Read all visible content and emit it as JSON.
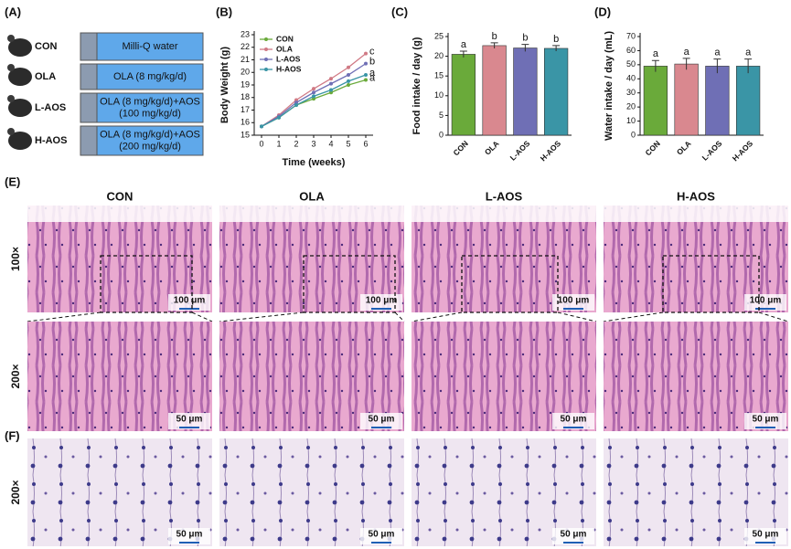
{
  "panel_a": {
    "label": "(A)",
    "groups": [
      {
        "name": "CON",
        "treatment": [
          "Milli-Q water"
        ]
      },
      {
        "name": "OLA",
        "treatment": [
          "OLA (8 mg/kg/d)"
        ]
      },
      {
        "name": "L-AOS",
        "treatment": [
          "OLA (8 mg/kg/d)+AOS",
          "(100 mg/kg/d)"
        ]
      },
      {
        "name": "H-AOS",
        "treatment": [
          "OLA (8 mg/kg/d)+AOS",
          "(200 mg/kg/d)"
        ]
      }
    ]
  },
  "chart_data": [
    {
      "panel": "(B)",
      "type": "line",
      "xlabel": "Time (weeks)",
      "ylabel": "Body Weight (g)",
      "x": [
        0,
        1,
        2,
        3,
        4,
        5,
        6
      ],
      "xlim": [
        0,
        6
      ],
      "xticks": [
        0,
        1,
        2,
        3,
        4,
        5,
        6
      ],
      "ylim": [
        15,
        23
      ],
      "yticks": [
        15,
        16,
        17,
        18,
        19,
        20,
        21,
        22,
        23
      ],
      "series": [
        {
          "name": "CON",
          "color": "#6aaa3a",
          "values": [
            15.7,
            16.4,
            17.4,
            17.9,
            18.4,
            19.0,
            19.4
          ],
          "significance": "a"
        },
        {
          "name": "OLA",
          "color": "#d07a85",
          "values": [
            15.7,
            16.6,
            17.8,
            18.7,
            19.5,
            20.4,
            21.5
          ],
          "significance": "c"
        },
        {
          "name": "L-AOS",
          "color": "#6f6fb5",
          "values": [
            15.7,
            16.5,
            17.6,
            18.4,
            19.1,
            19.8,
            20.7
          ],
          "significance": "b"
        },
        {
          "name": "H-AOS",
          "color": "#3a95a6",
          "values": [
            15.7,
            16.4,
            17.4,
            18.1,
            18.6,
            19.3,
            19.8
          ],
          "significance": "a"
        }
      ]
    },
    {
      "panel": "(C)",
      "type": "bar",
      "ylabel": "Food intake / day (g)",
      "categories": [
        "CON",
        "OLA",
        "L-AOS",
        "H-AOS"
      ],
      "values": [
        20.5,
        22.7,
        22.1,
        22.0
      ],
      "errors": [
        0.8,
        0.7,
        0.9,
        0.7
      ],
      "significance": [
        "a",
        "b",
        "b",
        "b"
      ],
      "colors": [
        "#6aaa3a",
        "#d9888f",
        "#6f6fb5",
        "#3a95a6"
      ],
      "ylim": [
        0,
        25
      ],
      "yticks": [
        0,
        5,
        10,
        15,
        20,
        25
      ]
    },
    {
      "panel": "(D)",
      "type": "bar",
      "ylabel": "Water intake / day (mL)",
      "categories": [
        "CON",
        "OLA",
        "L-AOS",
        "H-AOS"
      ],
      "values": [
        49,
        50.5,
        49,
        49
      ],
      "errors": [
        4,
        4,
        5,
        5
      ],
      "significance": [
        "a",
        "a",
        "a",
        "a"
      ],
      "colors": [
        "#6aaa3a",
        "#d9888f",
        "#6f6fb5",
        "#3a95a6"
      ],
      "ylim": [
        0,
        70
      ],
      "yticks": [
        0,
        10,
        20,
        30,
        40,
        50,
        60,
        70
      ]
    }
  ],
  "histology": {
    "panel_e": "(E)",
    "panel_f": "(F)",
    "groups": [
      "CON",
      "OLA",
      "L-AOS",
      "H-AOS"
    ],
    "rows": [
      "100×",
      "200×",
      "200×"
    ],
    "scale_bars": [
      "100 μm",
      "50 μm",
      "50 μm"
    ]
  }
}
